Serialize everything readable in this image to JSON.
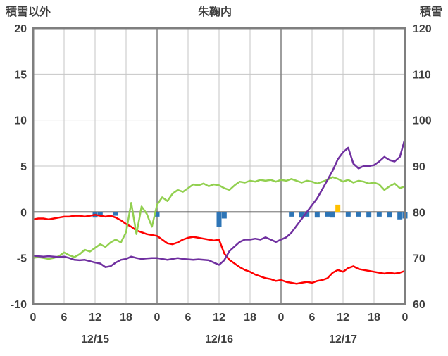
{
  "header": {
    "left_axis_title": "積雪以外",
    "chart_title": "朱鞠内",
    "right_axis_title": "積雪"
  },
  "chart_data": {
    "type": "line",
    "title": "朱鞠内",
    "x_hours_total": 72,
    "x_tick_interval": 6,
    "x_tick_labels": [
      "0",
      "6",
      "12",
      "18",
      "0",
      "6",
      "12",
      "18",
      "0",
      "6",
      "12",
      "18",
      "0"
    ],
    "date_labels": [
      "12/15",
      "12/16",
      "12/17"
    ],
    "left_axis": {
      "label": "積雪以外",
      "min": -10,
      "max": 20,
      "ticks": [
        20,
        15,
        10,
        5,
        0,
        -5,
        -10
      ]
    },
    "right_axis": {
      "label": "積雪",
      "min": 60,
      "max": 120,
      "ticks": [
        120,
        110,
        100,
        90,
        80,
        70,
        60
      ]
    },
    "grid": {
      "minor_color": "#c6c6c6",
      "day_line_color": "#7f7f7f",
      "zero_line_color": "#595959",
      "frame_color": "#7f7f7f"
    },
    "series": [
      {
        "name": "temperature-red",
        "axis": "left",
        "color": "#ff0000",
        "values": [
          -0.8,
          -0.7,
          -0.7,
          -0.8,
          -0.7,
          -0.6,
          -0.5,
          -0.5,
          -0.4,
          -0.4,
          -0.5,
          -0.4,
          -0.3,
          -0.4,
          -0.5,
          -0.4,
          -0.6,
          -0.9,
          -1.3,
          -1.6,
          -2.0,
          -2.2,
          -2.4,
          -2.5,
          -2.6,
          -3.0,
          -3.4,
          -3.5,
          -3.3,
          -3.0,
          -2.8,
          -2.7,
          -2.8,
          -2.9,
          -3.0,
          -3.1,
          -3.0,
          -4.5,
          -5.2,
          -5.6,
          -6.0,
          -6.3,
          -6.5,
          -6.8,
          -7.0,
          -7.2,
          -7.3,
          -7.5,
          -7.4,
          -7.6,
          -7.7,
          -7.8,
          -7.7,
          -7.6,
          -7.7,
          -7.5,
          -7.4,
          -7.2,
          -6.6,
          -6.3,
          -6.5,
          -6.1,
          -5.9,
          -6.2,
          -6.3,
          -6.4,
          -6.5,
          -6.6,
          -6.7,
          -6.6,
          -6.7,
          -6.6,
          -6.4
        ]
      },
      {
        "name": "series-green",
        "axis": "left",
        "color": "#92d050",
        "values": [
          -5.0,
          -4.9,
          -5.0,
          -5.1,
          -5.0,
          -4.8,
          -4.4,
          -4.7,
          -4.9,
          -4.6,
          -4.1,
          -4.3,
          -3.9,
          -3.5,
          -3.8,
          -3.3,
          -3.0,
          -3.3,
          -2.2,
          1.0,
          -2.4,
          0.6,
          -0.2,
          -1.6,
          0.8,
          1.6,
          1.2,
          2.0,
          2.4,
          2.2,
          2.6,
          3.0,
          2.9,
          3.1,
          2.8,
          3.0,
          2.9,
          2.6,
          2.4,
          2.9,
          3.3,
          3.2,
          3.4,
          3.3,
          3.5,
          3.4,
          3.5,
          3.3,
          3.5,
          3.4,
          3.6,
          3.4,
          3.2,
          3.4,
          3.3,
          3.1,
          3.3,
          3.5,
          3.8,
          3.6,
          3.3,
          3.5,
          3.2,
          3.4,
          3.3,
          3.1,
          3.2,
          3.0,
          2.4,
          2.8,
          3.1,
          2.6,
          2.8
        ]
      },
      {
        "name": "snow-depth-purple",
        "axis": "right",
        "color": "#7030a0",
        "values": [
          70.5,
          70.4,
          70.3,
          70.4,
          70.3,
          70.2,
          70.3,
          70.0,
          69.6,
          69.5,
          69.6,
          69.3,
          69.0,
          68.8,
          68.0,
          68.2,
          69.0,
          69.6,
          69.8,
          70.3,
          70.0,
          69.8,
          69.9,
          70.0,
          70.0,
          69.8,
          69.6,
          69.8,
          70.0,
          69.8,
          69.7,
          69.6,
          69.7,
          69.6,
          69.5,
          69.0,
          68.5,
          69.5,
          71.5,
          72.5,
          73.5,
          74.0,
          74.0,
          74.2,
          74.0,
          74.5,
          74.0,
          73.5,
          74.0,
          74.5,
          75.5,
          77.0,
          78.5,
          80.0,
          81.5,
          83.0,
          85.0,
          87.0,
          89.0,
          91.5,
          93.0,
          94.0,
          90.5,
          89.5,
          90.0,
          90.0,
          90.2,
          91.0,
          92.0,
          91.3,
          91.0,
          92.0,
          96.0
        ]
      }
    ],
    "bars": {
      "default_color": "#2e75b6",
      "items": [
        {
          "x": 12,
          "value": -0.6
        },
        {
          "x": 13,
          "value": -0.4
        },
        {
          "x": 16,
          "value": -0.4
        },
        {
          "x": 24,
          "value": -0.5
        },
        {
          "x": 36,
          "value": -1.6
        },
        {
          "x": 37,
          "value": -0.7
        },
        {
          "x": 50,
          "value": -0.5
        },
        {
          "x": 52,
          "value": -0.6
        },
        {
          "x": 53,
          "value": -0.5
        },
        {
          "x": 55,
          "value": -0.6
        },
        {
          "x": 57,
          "value": -0.5
        },
        {
          "x": 58,
          "value": -0.6
        },
        {
          "x": 59,
          "value": 0.8,
          "color": "#ffc000"
        },
        {
          "x": 61,
          "value": -0.5
        },
        {
          "x": 63,
          "value": -0.5
        },
        {
          "x": 65,
          "value": -0.6
        },
        {
          "x": 67,
          "value": -0.5
        },
        {
          "x": 69,
          "value": -0.6
        },
        {
          "x": 71,
          "value": -0.8
        },
        {
          "x": 72,
          "value": -0.7
        }
      ]
    }
  }
}
